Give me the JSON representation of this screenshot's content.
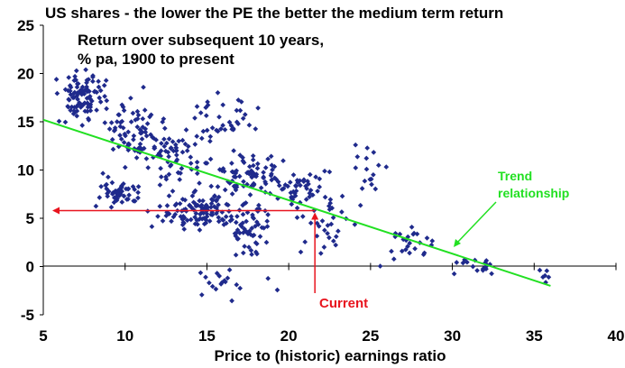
{
  "chart_data": {
    "type": "scatter",
    "title": "US shares - the lower the PE the better the medium term return",
    "subtitle_lines": [
      "Return over subsequent 10 years,",
      "% pa, 1900 to present"
    ],
    "xlabel": "Price to (historic) earnings ratio",
    "ylabel": "",
    "xlim": [
      5,
      40
    ],
    "ylim": [
      -5,
      25
    ],
    "x_ticks": [
      "5",
      "10",
      "15",
      "20",
      "25",
      "30",
      "35",
      "40"
    ],
    "y_ticks": [
      "25",
      "20",
      "15",
      "10",
      "5",
      "0",
      "-5"
    ],
    "point_color": "#1f2a8c",
    "trend_color": "#22e022",
    "annotation_color": "#e8141e",
    "trend_line": {
      "x": [
        5,
        36
      ],
      "y": [
        15.2,
        -2.0
      ]
    },
    "trend_label_lines": [
      "Trend",
      "relationship"
    ],
    "current": {
      "pe": 21.6,
      "return": 5.8,
      "label": "Current"
    },
    "clusters": [
      {
        "cx": 7.5,
        "cy": 17.5,
        "sx": 1.1,
        "sy": 2.0,
        "n": 95
      },
      {
        "cx": 10.5,
        "cy": 14.0,
        "sx": 1.3,
        "sy": 2.4,
        "n": 75
      },
      {
        "cx": 9.5,
        "cy": 8.0,
        "sx": 1.0,
        "sy": 1.6,
        "n": 50
      },
      {
        "cx": 13.0,
        "cy": 11.0,
        "sx": 1.8,
        "sy": 3.0,
        "n": 70
      },
      {
        "cx": 14.5,
        "cy": 5.8,
        "sx": 1.9,
        "sy": 1.6,
        "n": 110
      },
      {
        "cx": 17.5,
        "cy": 4.0,
        "sx": 1.2,
        "sy": 2.5,
        "n": 60
      },
      {
        "cx": 17.5,
        "cy": 9.5,
        "sx": 1.6,
        "sy": 1.8,
        "n": 70
      },
      {
        "cx": 20.5,
        "cy": 8.0,
        "sx": 1.3,
        "sy": 1.6,
        "n": 45
      },
      {
        "cx": 16.0,
        "cy": 15.0,
        "sx": 1.6,
        "sy": 2.5,
        "n": 35
      },
      {
        "cx": 22.5,
        "cy": 4.5,
        "sx": 1.6,
        "sy": 3.0,
        "n": 35
      },
      {
        "cx": 25.0,
        "cy": 10.5,
        "sx": 1.5,
        "sy": 2.2,
        "n": 15
      },
      {
        "cx": 27.5,
        "cy": 2.5,
        "sx": 1.3,
        "sy": 1.7,
        "n": 25
      },
      {
        "cx": 31.5,
        "cy": 0.0,
        "sx": 1.3,
        "sy": 0.8,
        "n": 18
      },
      {
        "cx": 35.7,
        "cy": -1.0,
        "sx": 0.3,
        "sy": 0.8,
        "n": 6
      },
      {
        "cx": 16.5,
        "cy": -1.5,
        "sx": 2.5,
        "sy": 1.3,
        "n": 18
      }
    ],
    "grid": false,
    "legend": "none"
  }
}
